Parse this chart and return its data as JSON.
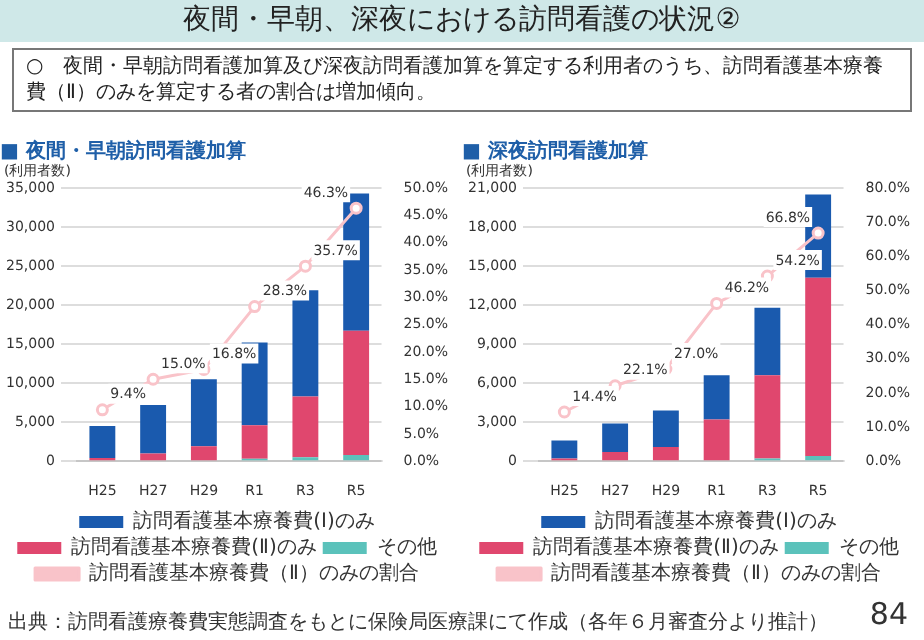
{
  "chart_data": [
    {
      "type": "other",
      "title": "夜間・早朝、深夜における訪問看護の状況②",
      "subtitle": "○　夜間・早朝訪問看護加算及び深夜訪問看護加算を算定する利用者のうち、訪問看護基本療養費（Ⅱ）のみを算定する者の割合は増加傾向。",
      "annotations": [
        "出典：訪問看護療養費実態調査をもとに保険局医療課にて作成（各年６月審査分より推計）",
        "84"
      ]
    },
    {
      "type": "bar",
      "title": "■ 夜間・早朝訪問看護加算",
      "ylabel": "(利用者数)",
      "stacked": true,
      "grid": "y",
      "legend": "bottom",
      "marker": "circle",
      "categories": [
        "H25",
        "H27",
        "H29",
        "R1",
        "R3",
        "R5"
      ],
      "ylim": [
        0,
        35000
      ],
      "yticks": [
        0,
        {
          "value": 5000,
          "label": "5,000"
        },
        {
          "value": 10000,
          "label": "10,000"
        },
        {
          "value": 15000,
          "label": "15,000"
        },
        {
          "value": 20000,
          "label": "20,000"
        },
        {
          "value": 25000,
          "label": "25,000"
        },
        {
          "value": 30000,
          "label": "30,000"
        },
        {
          "value": 35000,
          "label": "35,000"
        }
      ],
      "y2lim": [
        0,
        50
      ],
      "y2ticks": [
        {
          "value": 0,
          "label": "0.0%"
        },
        {
          "value": 5,
          "label": "5.0%"
        },
        {
          "value": 10,
          "label": "10.0%"
        },
        {
          "value": 15,
          "label": "15.0%"
        },
        {
          "value": 20,
          "label": "20.0%"
        },
        {
          "value": 25,
          "label": "25.0%"
        },
        {
          "value": 30,
          "label": "30.0%"
        },
        {
          "value": 35,
          "label": "35.0%"
        },
        {
          "value": 40,
          "label": "40.0%"
        },
        {
          "value": 45,
          "label": "45.0%"
        },
        {
          "value": 50,
          "label": "50.0%"
        }
      ],
      "series": [
        {
          "name": "その他",
          "color": "#5bc2bb",
          "values": [
            null,
            null,
            null,
            300,
            500,
            800
          ]
        },
        {
          "name": "訪問看護基本療養費(Ⅱ)のみ",
          "color": "#e0476e",
          "values": [
            400,
            1000,
            1900,
            4300,
            7800,
            15900
          ]
        },
        {
          "name": "訪問看護基本療養費(Ⅰ)のみ",
          "color": "#1a5aae",
          "values": [
            4100,
            6200,
            8600,
            10600,
            13600,
            17600
          ]
        },
        {
          "name": "訪問看護基本療養費（Ⅱ）のみの割合",
          "type": "line",
          "axis": "y2",
          "color": "#f9c3c9",
          "values": [
            9.4,
            15.0,
            16.8,
            28.3,
            35.7,
            46.3
          ],
          "value_labels": [
            "9.4%",
            "15.0%",
            "16.8%",
            "28.3%",
            "35.7%",
            "46.3%"
          ]
        }
      ]
    },
    {
      "type": "bar",
      "title": "■ 深夜訪問看護加算",
      "ylabel": "(利用者数)",
      "stacked": true,
      "grid": "y",
      "legend": "bottom",
      "marker": "circle",
      "categories": [
        "H25",
        "H27",
        "H29",
        "R1",
        "R3",
        "R5"
      ],
      "ylim": [
        0,
        21000
      ],
      "yticks": [
        0,
        {
          "value": 3000,
          "label": "3,000"
        },
        {
          "value": 6000,
          "label": "6,000"
        },
        {
          "value": 9000,
          "label": "9,000"
        },
        {
          "value": 12000,
          "label": "12,000"
        },
        {
          "value": 15000,
          "label": "15,000"
        },
        {
          "value": 18000,
          "label": "18,000"
        },
        {
          "value": 21000,
          "label": "21,000"
        }
      ],
      "y2lim": [
        0,
        80
      ],
      "y2ticks": [
        {
          "value": 0,
          "label": "0.0%"
        },
        {
          "value": 10,
          "label": "10.0%"
        },
        {
          "value": 20,
          "label": "20.0%"
        },
        {
          "value": 30,
          "label": "30.0%"
        },
        {
          "value": 40,
          "label": "40.0%"
        },
        {
          "value": 50,
          "label": "50.0%"
        },
        {
          "value": 60,
          "label": "60.0%"
        },
        {
          "value": 70,
          "label": "70.0%"
        },
        {
          "value": 80,
          "label": "80.0%"
        }
      ],
      "series": [
        {
          "name": "その他",
          "color": "#5bc2bb",
          "values": [
            null,
            null,
            null,
            null,
            200,
            400
          ]
        },
        {
          "name": "訪問看護基本療養費(Ⅱ)のみ",
          "color": "#e0476e",
          "values": [
            200,
            700,
            1100,
            3200,
            6400,
            13700
          ]
        },
        {
          "name": "訪問看護基本療養費(Ⅰ)のみ",
          "color": "#1a5aae",
          "values": [
            1400,
            2200,
            2800,
            3400,
            5200,
            6400
          ]
        },
        {
          "name": "訪問看護基本療養費（Ⅱ）のみの割合",
          "type": "line",
          "axis": "y2",
          "color": "#f9c3c9",
          "values": [
            14.4,
            22.1,
            27.0,
            46.2,
            54.2,
            66.8
          ],
          "value_labels": [
            "14.4%",
            "22.1%",
            "27.0%",
            "46.2%",
            "54.2%",
            "66.8%"
          ]
        }
      ]
    }
  ]
}
